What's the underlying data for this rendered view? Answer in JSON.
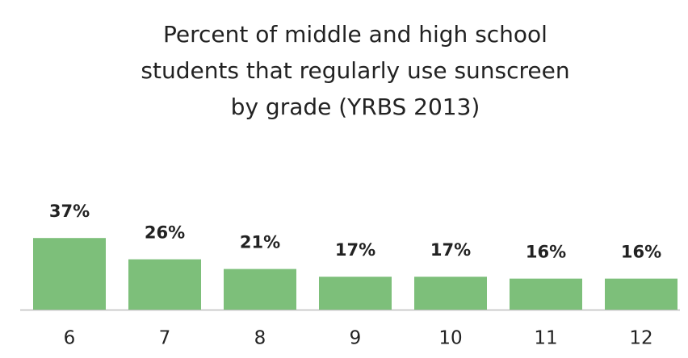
{
  "chart_data": {
    "type": "bar",
    "title": [
      "Percent of middle and high school",
      "students that regularly use sunscreen",
      "by grade (YRBS 2013)"
    ],
    "categories": [
      "6",
      "7",
      "8",
      "9",
      "10",
      "11",
      "12"
    ],
    "values": [
      37,
      26,
      21,
      17,
      17,
      16,
      16
    ],
    "value_labels": [
      "37%",
      "26%",
      "21%",
      "17%",
      "17%",
      "16%",
      "16%"
    ],
    "color": "#7dbf7a"
  }
}
